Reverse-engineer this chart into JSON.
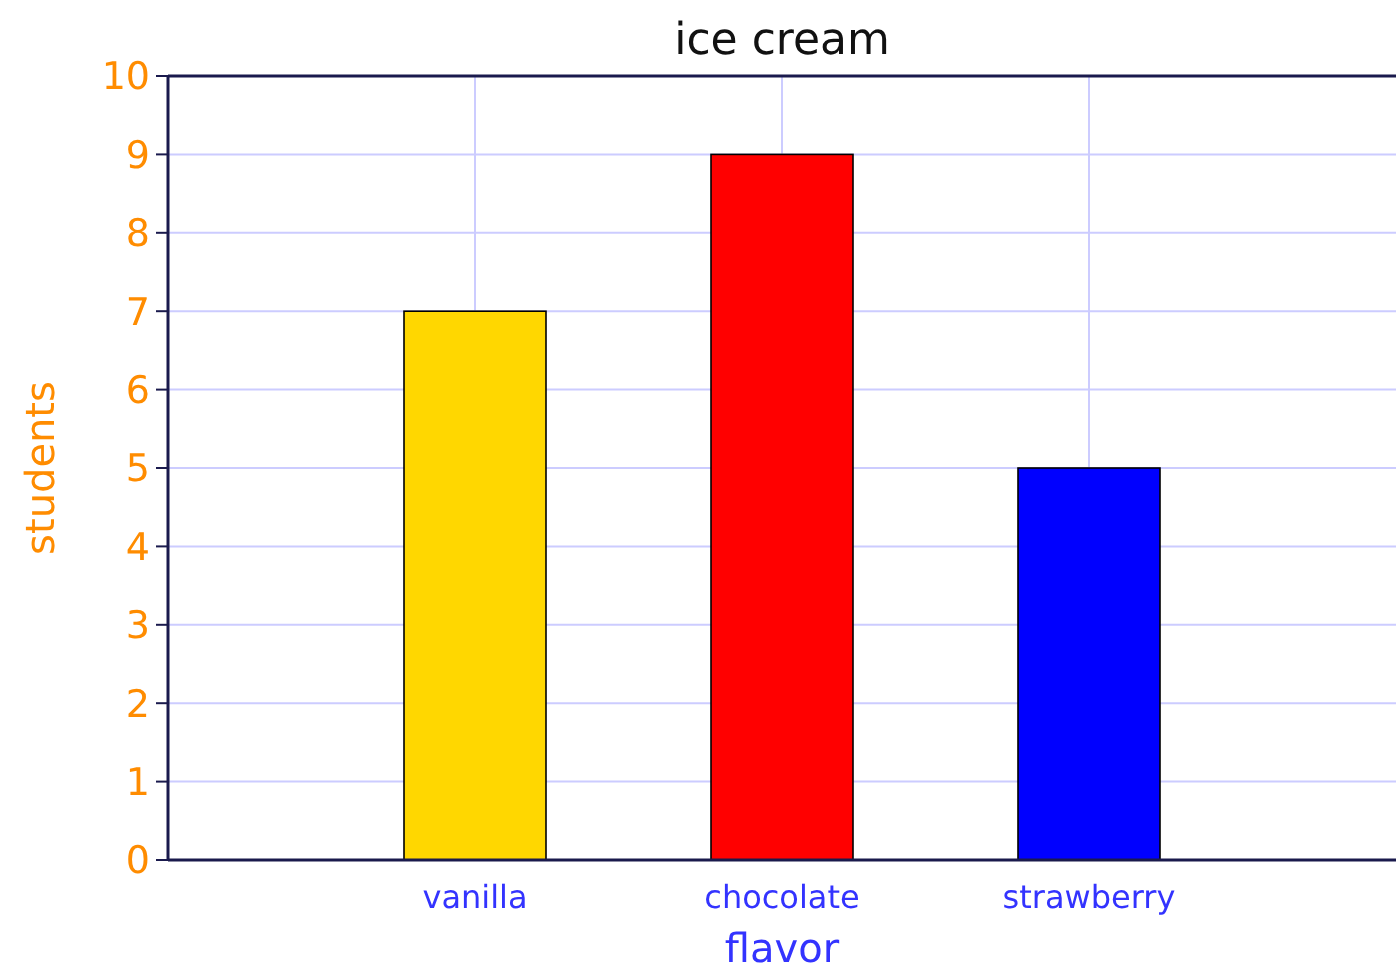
{
  "chart_data": {
    "type": "bar",
    "title": "ice cream",
    "xlabel": "flavor",
    "ylabel": "students",
    "categories": [
      "vanilla",
      "chocolate",
      "strawberry"
    ],
    "values": [
      7,
      9,
      5
    ],
    "colors": [
      "#ffd700",
      "#ff0000",
      "#0000ff"
    ],
    "ylim": [
      0,
      10
    ],
    "yticks": [
      0,
      1,
      2,
      3,
      4,
      5,
      6,
      7,
      8,
      9,
      10
    ],
    "grid": true
  }
}
